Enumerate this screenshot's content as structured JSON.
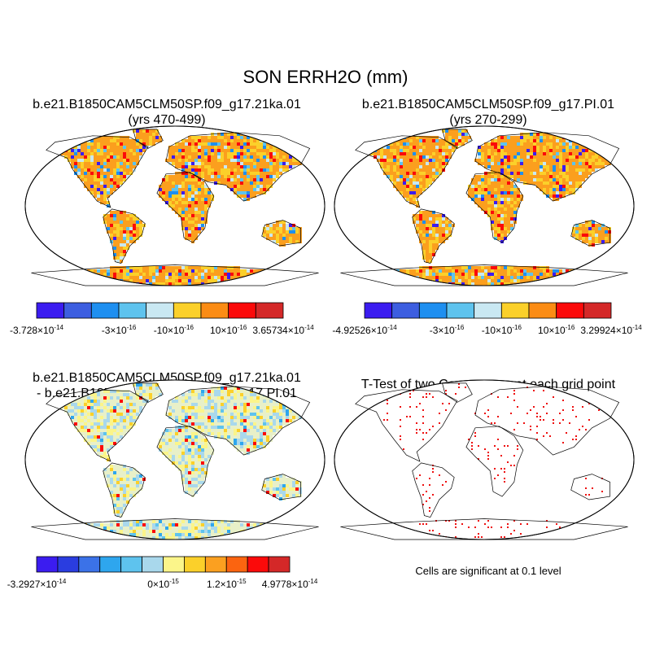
{
  "title": "SON ERRH2O (mm)",
  "panels": [
    {
      "id": "case1",
      "title_line1": "b.e21.B1850CAM5CLM50SP.f09_g17.21ka.01",
      "title_line2": "(yrs 470-499)",
      "palette": [
        "#3b1cf0",
        "#3d5ee0",
        "#1e8ff0",
        "#5ec3ee",
        "#c9e8f2",
        "#fbd02a",
        "#fb8c14",
        "#fb0a0a",
        "#d42828"
      ],
      "labels": [
        {
          "mant": "-3.728",
          "exp": "-14",
          "after": 0
        },
        {
          "mant": "-3",
          "exp": "-16",
          "after": 3
        },
        {
          "mant": "-10",
          "exp": "-16",
          "after": 5
        },
        {
          "mant": "10",
          "exp": "-16",
          "after": 7
        },
        {
          "mant": "3.65734",
          "exp": "-14",
          "after": 9
        }
      ]
    },
    {
      "id": "case2",
      "title_line1": "b.e21.B1850CAM5CLM50SP.f09_g17.PI.01",
      "title_line2": "(yrs 270-299)",
      "palette": [
        "#3b1cf0",
        "#3d5ee0",
        "#1e8ff0",
        "#5ec3ee",
        "#c9e8f2",
        "#fbd02a",
        "#fb8c14",
        "#fb0a0a",
        "#d42828"
      ],
      "labels": [
        {
          "mant": "-4.92526",
          "exp": "-14",
          "after": 0
        },
        {
          "mant": "-3",
          "exp": "-16",
          "after": 3
        },
        {
          "mant": "-10",
          "exp": "-16",
          "after": 5
        },
        {
          "mant": "10",
          "exp": "-16",
          "after": 7
        },
        {
          "mant": "3.29924",
          "exp": "-14",
          "after": 9
        }
      ]
    },
    {
      "id": "diff",
      "title_line1": "b.e21.B1850CAM5CLM50SP.f09_g17.21ka.01",
      "title_line2": "- b.e21.B1850CAM5CLM50SP.f09_g17.PI.01",
      "palette": [
        "#3b1cf0",
        "#2a3de0",
        "#3b72e8",
        "#2ea6ee",
        "#5ec3ee",
        "#a9d8ec",
        "#fbf58a",
        "#fbd02a",
        "#fba020",
        "#fb6410",
        "#fb0a0a",
        "#d42828"
      ],
      "labels": [
        {
          "mant": "-3.2927",
          "exp": "-14",
          "after": 0
        },
        {
          "mant": "0",
          "exp": "-15",
          "after": 6
        },
        {
          "mant": "1.2",
          "exp": "-15",
          "after": 9
        },
        {
          "mant": "4.9778",
          "exp": "-14",
          "after": 12
        }
      ]
    },
    {
      "id": "ttest",
      "title_line1": "T-Test of two Case means at each grid point",
      "title_line2": ""
    }
  ],
  "significance_note": "Cells are significant at 0.1 level",
  "times_symbol": "×10",
  "colors": {
    "land_case": "#fb9f1e",
    "land_diff": "#e8f0c8",
    "sig": "#ee1010",
    "coast": "#000000"
  }
}
